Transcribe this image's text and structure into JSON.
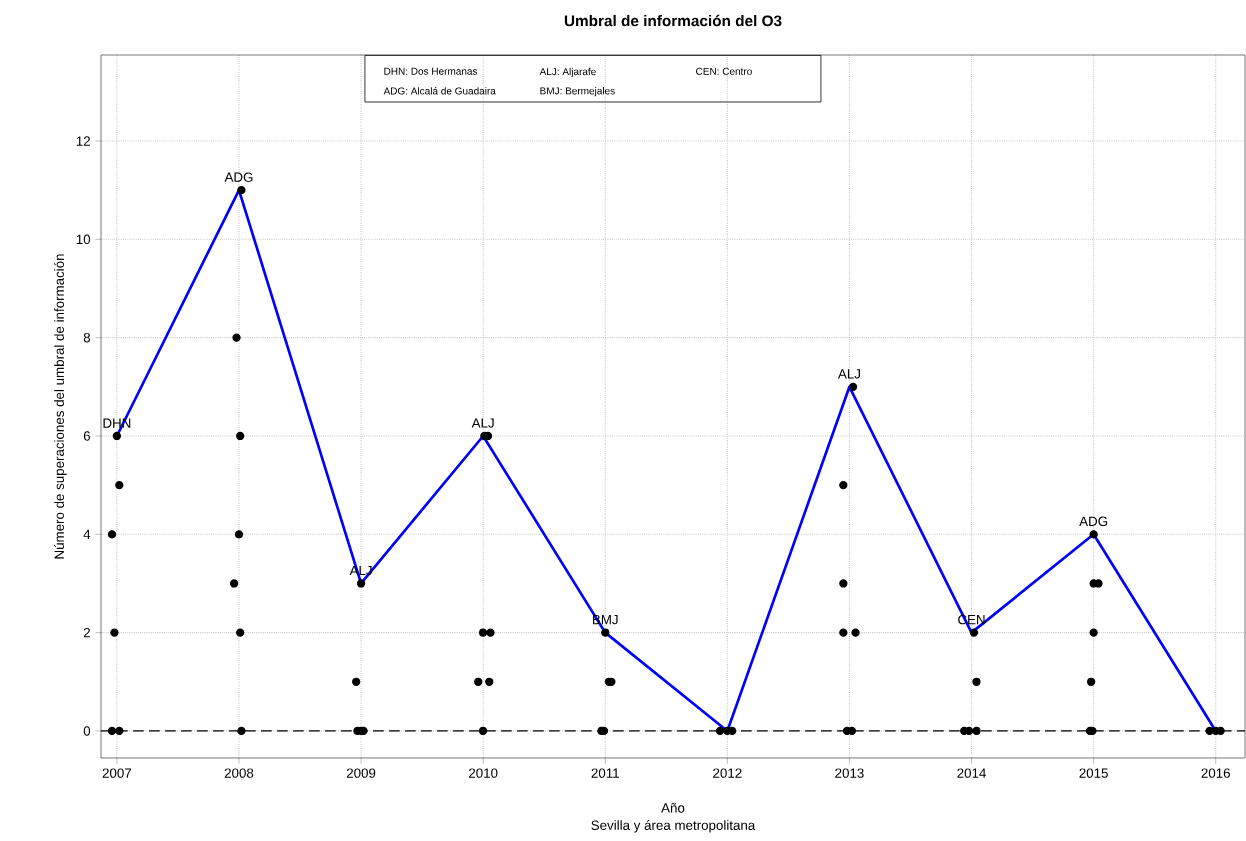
{
  "chart_data": {
    "type": "scatter",
    "title": "Umbral de información del O3",
    "xlabel": "Año",
    "ylabel": "Número de superaciones del umbral de información",
    "xlim": [
      2006.87,
      2016.24
    ],
    "ylim": [
      -0.55,
      13.75
    ],
    "xticks": [
      2007,
      2008,
      2009,
      2010,
      2011,
      2012,
      2013,
      2014,
      2015,
      2016
    ],
    "yticks": [
      0,
      2,
      4,
      6,
      8,
      10,
      12
    ],
    "grid": true,
    "series": [
      {
        "type": "line",
        "color": "#0000ff",
        "x": [
          2007,
          2008,
          2009,
          2010,
          2011,
          2012,
          2013,
          2014,
          2015,
          2016
        ],
        "values": [
          6,
          11,
          3,
          6,
          2,
          0,
          7,
          2,
          4,
          0
        ]
      },
      {
        "color": "#000000",
        "marker": "circle",
        "x": [
          2007.0,
          2007.02,
          2006.96,
          2006.98,
          2006.96,
          2007.02,
          2008.02,
          2007.98,
          2008.01,
          2008.0,
          2007.96,
          2008.01,
          2008.02,
          2008.96,
          2009.0,
          2008.97,
          2009.0,
          2009.02,
          2010.01,
          2010.04,
          2010.0,
          2010.06,
          2009.96,
          2010.05,
          2010.0,
          2011.0,
          2011.03,
          2011.05,
          2010.97,
          2010.99,
          2011.94,
          2012.0,
          2012.04,
          2013.03,
          2012.95,
          2012.95,
          2012.95,
          2013.05,
          2012.98,
          2013.02,
          2013.94,
          2013.98,
          2014.04,
          2014.04,
          2014.02,
          2015.0,
          2015.0,
          2015.04,
          2015.0,
          2014.98,
          2014.97,
          2014.99,
          2015.95,
          2016.0,
          2016.04
        ],
        "values": [
          6,
          5,
          4,
          2,
          0,
          0,
          11,
          8,
          6,
          4,
          3,
          2,
          0,
          1,
          3,
          0,
          0,
          0,
          6,
          6,
          2,
          2,
          1,
          1,
          0,
          2,
          1,
          1,
          0,
          0,
          0,
          0,
          0,
          7,
          5,
          3,
          2,
          2,
          0,
          0,
          0,
          0,
          0,
          1,
          2,
          4,
          3,
          3,
          2,
          1,
          0,
          0,
          0,
          0,
          0
        ]
      }
    ],
    "ref_lines": [
      {
        "axis": "y",
        "value": 0,
        "color": "#000000",
        "line_style": "dashed"
      }
    ],
    "annotations": [
      "DHN: Dos Hermanas",
      "ALJ: Aljarafe",
      "CEN: Centro",
      "ADG: Alcalá de Guadaira",
      "BMJ: Bermejales",
      "Sevilla y área metropolitana",
      {
        "text": "DHN",
        "x": 2007,
        "y": 6
      },
      {
        "text": "ADG",
        "x": 2008,
        "y": 11
      },
      {
        "text": "ALJ",
        "x": 2009,
        "y": 3
      },
      {
        "text": "ALJ",
        "x": 2010,
        "y": 6
      },
      {
        "text": "BMJ",
        "x": 2011,
        "y": 2
      },
      {
        "text": "ALJ",
        "x": 2013,
        "y": 7
      },
      {
        "text": "CEN",
        "x": 2014,
        "y": 2
      },
      {
        "text": "ADG",
        "x": 2015,
        "y": 4
      }
    ]
  }
}
